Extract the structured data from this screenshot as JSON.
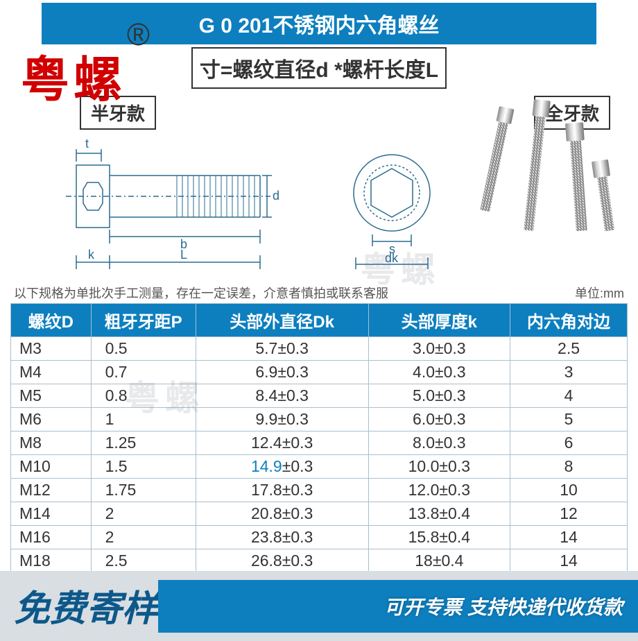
{
  "header": {
    "title": "G  0 201不锈钢内六角螺丝",
    "subtitle": "寸=螺纹直径d *螺杆长度L"
  },
  "watermark": {
    "logo": "粤螺",
    "reg": "®",
    "faint": "粤螺"
  },
  "styles": {
    "left_label": "半牙款",
    "right_label": "全牙款"
  },
  "diagram_labels": {
    "t": "t",
    "b": "b",
    "k": "k",
    "L": "L",
    "d": "d",
    "s": "s",
    "dk": "dk"
  },
  "note": {
    "left": "以下规格为单批次手工测量，存在一定误差，介意者慎拍或联系客服",
    "right": "单位:mm"
  },
  "table": {
    "columns": [
      "螺纹D",
      "粗牙牙距P",
      "头部外直径Dk",
      "头部厚度k",
      "内六角对边"
    ],
    "col_widths": [
      "13%",
      "17%",
      "28%",
      "23%",
      "19%"
    ],
    "header_bg": "#0d7fbf",
    "header_color": "#ffffff",
    "border_color": "#a8bfcf",
    "cell_fontsize": 23,
    "highlight_color": "#0d7fbf",
    "rows": [
      [
        "M3",
        "0.5",
        "5.7±0.3",
        "3.0±0.3",
        "2.5"
      ],
      [
        "M4",
        "0.7",
        "6.9±0.3",
        "4.0±0.3",
        "3"
      ],
      [
        "M5",
        "0.8",
        "8.4±0.3",
        "5.0±0.3",
        "4"
      ],
      [
        "M6",
        "1",
        "9.9±0.3",
        "6.0±0.3",
        "5"
      ],
      [
        "M8",
        "1.25",
        "12.4±0.3",
        "8.0±0.3",
        "6"
      ],
      [
        "M10",
        "1.5",
        "14.9±0.3",
        "10.0±0.3",
        "8"
      ],
      [
        "M12",
        "1.75",
        "17.8±0.3",
        "12.0±0.3",
        "10"
      ],
      [
        "M14",
        "2",
        "20.8±0.3",
        "13.8±0.4",
        "12"
      ],
      [
        "M16",
        "2",
        "23.8±0.3",
        "15.8±0.4",
        "14"
      ],
      [
        "M18",
        "2.5",
        "26.8±0.3",
        "18±0.4",
        "14"
      ]
    ],
    "highlight_cell": {
      "row": 5,
      "col": 2,
      "prefix": "14.9"
    }
  },
  "footer": {
    "left": "免费寄样",
    "right": "可开专票 支持快递代收货款"
  },
  "colors": {
    "primary": "#0d7fbf",
    "logo_red": "#d10000",
    "footer_bg": "#d9dee2",
    "footer_left": "#0d588a",
    "text": "#333333",
    "note": "#555555"
  }
}
